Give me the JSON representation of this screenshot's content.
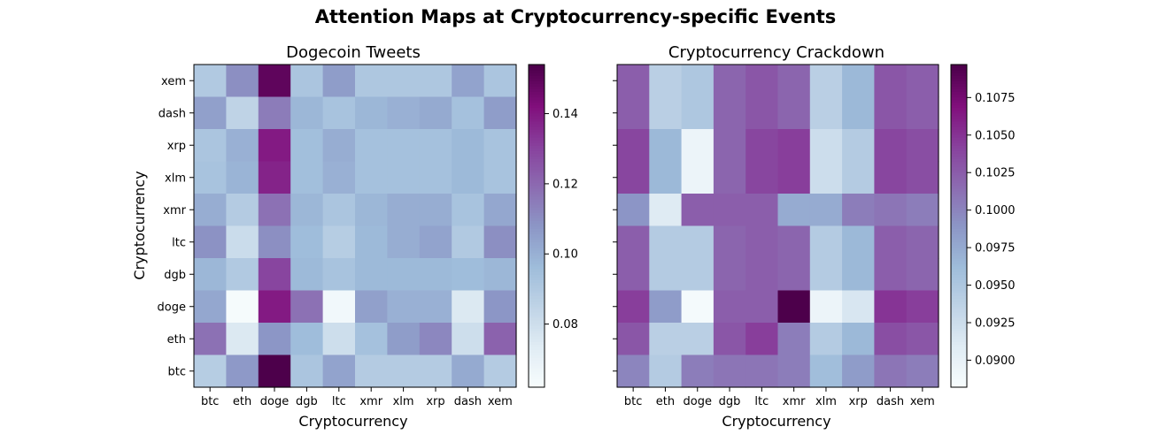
{
  "figure": {
    "title": "Attention Maps at Cryptocurrency-specific Events"
  },
  "chart_data": [
    {
      "type": "heatmap",
      "title": "Dogecoin Tweets",
      "xlabel": "Cryptocurrency",
      "ylabel": "Cryptocurrency",
      "x_categories": [
        "btc",
        "eth",
        "doge",
        "dgb",
        "ltc",
        "xmr",
        "xlm",
        "xrp",
        "dash",
        "xem"
      ],
      "y_categories": [
        "xem",
        "dash",
        "xrp",
        "xlm",
        "xmr",
        "ltc",
        "dgb",
        "doge",
        "eth",
        "btc"
      ],
      "colormap": "BuPu",
      "vmin": 0.062,
      "vmax": 0.154,
      "colorbar_ticks": [
        0.08,
        0.1,
        0.12,
        0.14
      ],
      "colorbar_tick_labels": [
        "0.08",
        "0.10",
        "0.12",
        "0.14"
      ],
      "values": [
        [
          0.09,
          0.11,
          0.15,
          0.092,
          0.106,
          0.091,
          0.091,
          0.091,
          0.104,
          0.092
        ],
        [
          0.105,
          0.085,
          0.115,
          0.098,
          0.093,
          0.098,
          0.1,
          0.102,
          0.094,
          0.106
        ],
        [
          0.092,
          0.1,
          0.14,
          0.095,
          0.101,
          0.094,
          0.094,
          0.094,
          0.097,
          0.093
        ],
        [
          0.093,
          0.099,
          0.138,
          0.095,
          0.1,
          0.094,
          0.094,
          0.094,
          0.097,
          0.093
        ],
        [
          0.101,
          0.089,
          0.118,
          0.098,
          0.092,
          0.098,
          0.101,
          0.101,
          0.093,
          0.103
        ],
        [
          0.109,
          0.081,
          0.11,
          0.096,
          0.088,
          0.097,
          0.101,
          0.104,
          0.09,
          0.11
        ],
        [
          0.098,
          0.09,
          0.13,
          0.097,
          0.093,
          0.097,
          0.097,
          0.097,
          0.096,
          0.098
        ],
        [
          0.103,
          0.063,
          0.14,
          0.118,
          0.065,
          0.105,
          0.1,
          0.1,
          0.075,
          0.108
        ],
        [
          0.118,
          0.075,
          0.108,
          0.096,
          0.08,
          0.094,
          0.106,
          0.112,
          0.08,
          0.122
        ],
        [
          0.088,
          0.107,
          0.154,
          0.092,
          0.104,
          0.089,
          0.089,
          0.089,
          0.102,
          0.089
        ]
      ]
    },
    {
      "type": "heatmap",
      "title": "Cryptocurrency Crackdown",
      "xlabel": "Cryptocurrency",
      "ylabel": "",
      "x_categories": [
        "btc",
        "eth",
        "doge",
        "dgb",
        "ltc",
        "xmr",
        "xlm",
        "xrp",
        "dash",
        "xem"
      ],
      "y_categories": [
        "xem",
        "dash",
        "xrp",
        "xlm",
        "xmr",
        "ltc",
        "dgb",
        "doge",
        "eth",
        "btc"
      ],
      "colormap": "BuPu",
      "vmin": 0.0882,
      "vmax": 0.1097,
      "colorbar_ticks": [
        0.09,
        0.0925,
        0.095,
        0.0975,
        0.1,
        0.1025,
        0.105,
        0.1075
      ],
      "colorbar_tick_labels": [
        "0.0900",
        "0.0925",
        "0.0950",
        "0.0975",
        "0.1000",
        "0.1025",
        "0.1050",
        "0.1075"
      ],
      "values": [
        [
          0.1025,
          0.094,
          0.095,
          0.102,
          0.103,
          0.102,
          0.094,
          0.0965,
          0.103,
          0.1025
        ],
        [
          0.1025,
          0.094,
          0.095,
          0.102,
          0.103,
          0.102,
          0.094,
          0.0965,
          0.103,
          0.1025
        ],
        [
          0.104,
          0.0965,
          0.0895,
          0.102,
          0.104,
          0.1045,
          0.0925,
          0.0945,
          0.104,
          0.1035
        ],
        [
          0.104,
          0.0965,
          0.0895,
          0.102,
          0.104,
          0.1045,
          0.0925,
          0.0945,
          0.104,
          0.1035
        ],
        [
          0.099,
          0.091,
          0.1025,
          0.1025,
          0.1025,
          0.0975,
          0.0975,
          0.1005,
          0.101,
          0.1005
        ],
        [
          0.1025,
          0.0945,
          0.0945,
          0.102,
          0.1025,
          0.102,
          0.0945,
          0.0965,
          0.1025,
          0.102
        ],
        [
          0.1025,
          0.0945,
          0.0945,
          0.102,
          0.1025,
          0.102,
          0.0945,
          0.0965,
          0.1025,
          0.102
        ],
        [
          0.1045,
          0.0985,
          0.0885,
          0.1025,
          0.1025,
          0.1097,
          0.0895,
          0.0915,
          0.105,
          0.1045
        ],
        [
          0.103,
          0.094,
          0.094,
          0.103,
          0.1045,
          0.1005,
          0.0945,
          0.0965,
          0.1035,
          0.103
        ],
        [
          0.1,
          0.0945,
          0.1005,
          0.101,
          0.101,
          0.1005,
          0.096,
          0.0985,
          0.101,
          0.1005
        ]
      ]
    }
  ]
}
